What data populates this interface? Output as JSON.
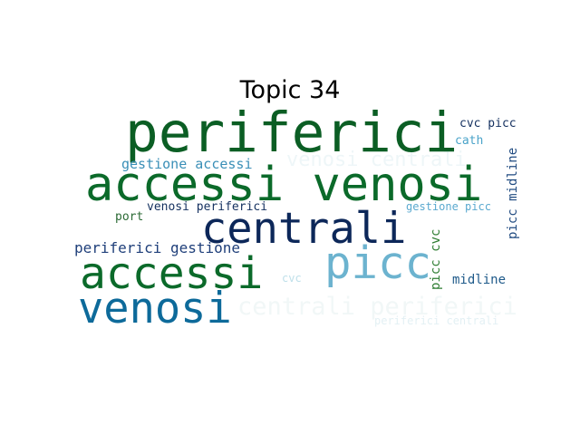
{
  "title": "Topic 34",
  "words": [
    {
      "text": "periferici",
      "color": "#0b5e24"
    },
    {
      "text": "accessi venosi",
      "color": "#0b6a2a"
    },
    {
      "text": "centrali",
      "color": "#0c2759"
    },
    {
      "text": "accessi",
      "color": "#0b6a2a"
    },
    {
      "text": "picc",
      "color": "#6cb3cf"
    },
    {
      "text": "venosi",
      "color": "#0d6a9a"
    },
    {
      "text": "venosi centrali",
      "color": "#eef6f8"
    },
    {
      "text": "centrali periferici",
      "color": "#f1f7f7"
    },
    {
      "text": "gestione accessi",
      "color": "#3a8fb7"
    },
    {
      "text": "periferici gestione",
      "color": "#1f3f7a"
    },
    {
      "text": "venosi periferici",
      "color": "#14305f"
    },
    {
      "text": "port",
      "color": "#2b6a35"
    },
    {
      "text": "cvc picc",
      "color": "#14305f"
    },
    {
      "text": "cath",
      "color": "#4aa3c9"
    },
    {
      "text": "picc midline",
      "color": "#1f4a80"
    },
    {
      "text": "picc cvc",
      "color": "#2e7d32"
    },
    {
      "text": "gestione picc",
      "color": "#5aa9cf"
    },
    {
      "text": "midline",
      "color": "#1f5a8a"
    },
    {
      "text": "cvc",
      "color": "#bfe0ea"
    },
    {
      "text": "periferici centrali",
      "color": "#e3f0f4"
    }
  ]
}
